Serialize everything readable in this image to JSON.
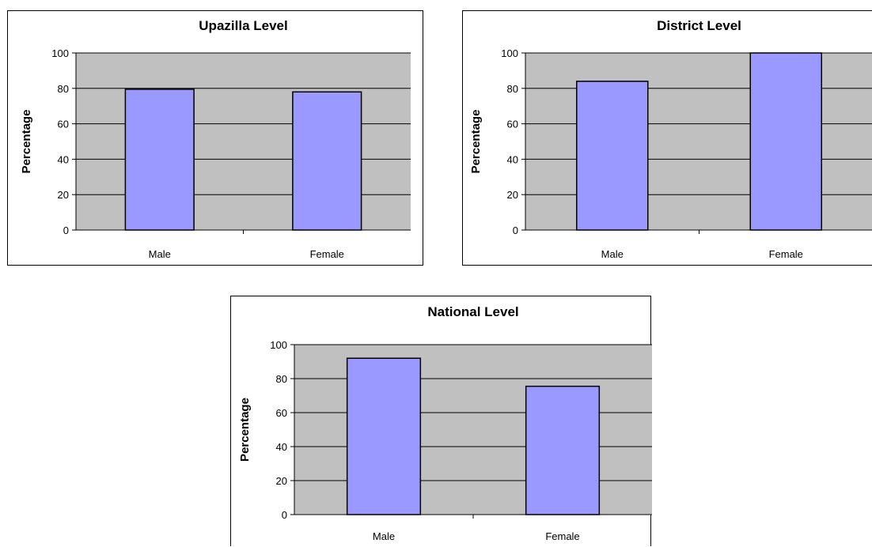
{
  "colors": {
    "plot_background": "#c0c0c0",
    "bar_fill": "#9999ff",
    "bar_stroke": "#000000",
    "gridline": "#000000"
  },
  "chart_data": [
    {
      "type": "bar",
      "title": "Upazilla Level",
      "xlabel": "",
      "ylabel": "Percentage",
      "categories": [
        "Male",
        "Female"
      ],
      "values": [
        79.5,
        78
      ],
      "ylim": [
        0,
        100
      ],
      "yticks": [
        "0",
        "20",
        "40",
        "60",
        "80",
        "100"
      ],
      "grid": true
    },
    {
      "type": "bar",
      "title": "District Level",
      "xlabel": "",
      "ylabel": "Percentage",
      "categories": [
        "Male",
        "Female"
      ],
      "values": [
        84,
        100
      ],
      "ylim": [
        0,
        100
      ],
      "yticks": [
        "0",
        "20",
        "40",
        "60",
        "80",
        "100"
      ],
      "grid": true
    },
    {
      "type": "bar",
      "title": "National Level",
      "xlabel": "",
      "ylabel": "Percentage",
      "categories": [
        "Male",
        "Female"
      ],
      "values": [
        92,
        75.5
      ],
      "ylim": [
        0,
        100
      ],
      "yticks": [
        "0",
        "20",
        "40",
        "60",
        "80",
        "100"
      ],
      "grid": true
    }
  ]
}
